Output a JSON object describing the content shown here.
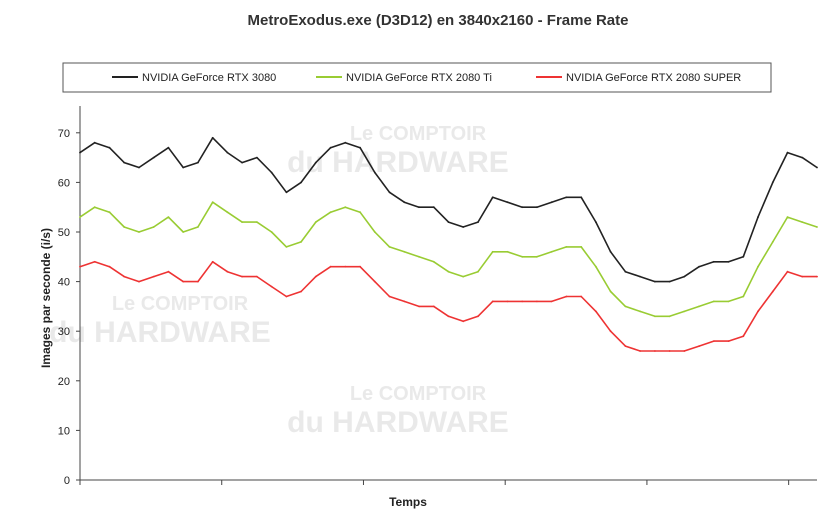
{
  "chart_data": {
    "type": "line",
    "title": "MetroExodus.exe (D3D12) en 3840x2160 - Frame Rate",
    "xlabel": "Temps",
    "ylabel": "Images par seconde (i/s)",
    "ylim": [
      0,
      75
    ],
    "yticks": [
      "0",
      "10",
      "20",
      "30",
      "40",
      "50",
      "60",
      "70"
    ],
    "grid": false,
    "legend_position": "top",
    "x": [
      0,
      2,
      4,
      6,
      8,
      10,
      12,
      14,
      16,
      18,
      20,
      22,
      24,
      26,
      28,
      30,
      32,
      34,
      36,
      38,
      40,
      42,
      44,
      46,
      48,
      50,
      52,
      54,
      56,
      58,
      60,
      62,
      64,
      66,
      68,
      70,
      72,
      74,
      76,
      78,
      80,
      82,
      84,
      86,
      88,
      90,
      92,
      94,
      96,
      98,
      100
    ],
    "series": [
      {
        "name": "NVIDIA GeForce RTX 3080",
        "color": "#222222",
        "values": [
          66,
          68,
          67,
          64,
          63,
          65,
          67,
          63,
          64,
          69,
          66,
          64,
          65,
          62,
          58,
          60,
          64,
          67,
          68,
          67,
          62,
          58,
          56,
          55,
          55,
          52,
          51,
          52,
          57,
          56,
          55,
          55,
          56,
          57,
          57,
          52,
          46,
          42,
          41,
          40,
          40,
          41,
          43,
          44,
          44,
          45,
          53,
          60,
          66,
          65,
          63
        ]
      },
      {
        "name": "NVIDIA GeForce RTX 2080 Ti",
        "color": "#99cc33",
        "values": [
          53,
          55,
          54,
          51,
          50,
          51,
          53,
          50,
          51,
          56,
          54,
          52,
          52,
          50,
          47,
          48,
          52,
          54,
          55,
          54,
          50,
          47,
          46,
          45,
          44,
          42,
          41,
          42,
          46,
          46,
          45,
          45,
          46,
          47,
          47,
          43,
          38,
          35,
          34,
          33,
          33,
          34,
          35,
          36,
          36,
          37,
          43,
          48,
          53,
          52,
          51
        ]
      },
      {
        "name": "NVIDIA GeForce RTX 2080 SUPER",
        "color": "#ee3333",
        "values": [
          43,
          44,
          43,
          41,
          40,
          41,
          42,
          40,
          40,
          44,
          42,
          41,
          41,
          39,
          37,
          38,
          41,
          43,
          43,
          43,
          40,
          37,
          36,
          35,
          35,
          33,
          32,
          33,
          36,
          36,
          36,
          36,
          36,
          37,
          37,
          34,
          30,
          27,
          26,
          26,
          26,
          26,
          27,
          28,
          28,
          29,
          34,
          38,
          42,
          41,
          41
        ]
      }
    ]
  },
  "watermark": {
    "line1": "Le COMPTOIR",
    "line2": "du HARDWARE"
  }
}
